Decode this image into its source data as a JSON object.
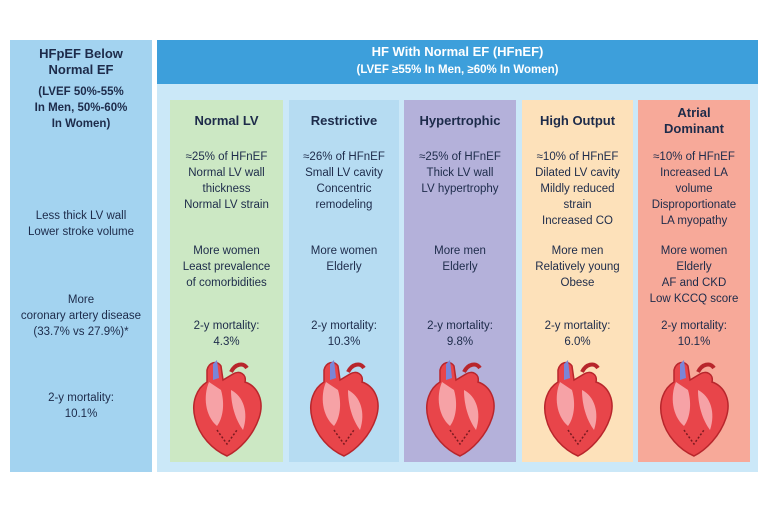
{
  "left": {
    "title": [
      "HFpEF Below",
      "Normal EF"
    ],
    "subtitle": [
      "(LVEF 50%-55%",
      "In Men, 50%-60%",
      "In Women)"
    ],
    "feature": [
      "Less thick LV wall",
      "Lower stroke volume"
    ],
    "comorbidity": [
      "More",
      "coronary artery disease",
      "(33.7% vs 27.9%)*"
    ],
    "mortality": [
      "2-y mortality:",
      "10.1%"
    ]
  },
  "header": {
    "title": "HF With Normal EF (HFnEF)",
    "subtitle": "(LVEF ≥55% In Men, ≥60% In Women)"
  },
  "columns": [
    {
      "title": [
        "Normal LV"
      ],
      "features": [
        "≈25% of HFnEF",
        "Normal LV wall",
        "thickness",
        "Normal LV strain"
      ],
      "profile": [
        "More women",
        "Least prevalence",
        "of comorbidities"
      ],
      "mortality": [
        "2-y mortality:",
        "4.3%"
      ]
    },
    {
      "title": [
        "Restrictive"
      ],
      "features": [
        "≈26% of HFnEF",
        "Small LV cavity",
        "Concentric",
        "remodeling"
      ],
      "profile": [
        "More women",
        "Elderly"
      ],
      "mortality": [
        "2-y mortality:",
        "10.3%"
      ]
    },
    {
      "title": [
        "Hypertrophic"
      ],
      "features": [
        "≈25% of HFnEF",
        "Thick LV wall",
        "LV hypertrophy"
      ],
      "profile": [
        "More men",
        "Elderly"
      ],
      "mortality": [
        "2-y mortality:",
        "9.8%"
      ]
    },
    {
      "title": [
        "High Output"
      ],
      "features": [
        "≈10% of HFnEF",
        "Dilated LV cavity",
        "Mildly reduced",
        "strain",
        "Increased CO"
      ],
      "profile": [
        "More men",
        "Relatively young",
        "Obese"
      ],
      "mortality": [
        "2-y mortality:",
        "6.0%"
      ]
    },
    {
      "title": [
        "Atrial",
        "Dominant"
      ],
      "features": [
        "≈10% of HFnEF",
        "Increased LA",
        "volume",
        "Disproportionate",
        "LA myopathy"
      ],
      "profile": [
        "More women",
        "Elderly",
        "AF and CKD",
        "Low KCCQ score"
      ],
      "mortality": [
        "2-y mortality:",
        "10.1%"
      ]
    }
  ]
}
